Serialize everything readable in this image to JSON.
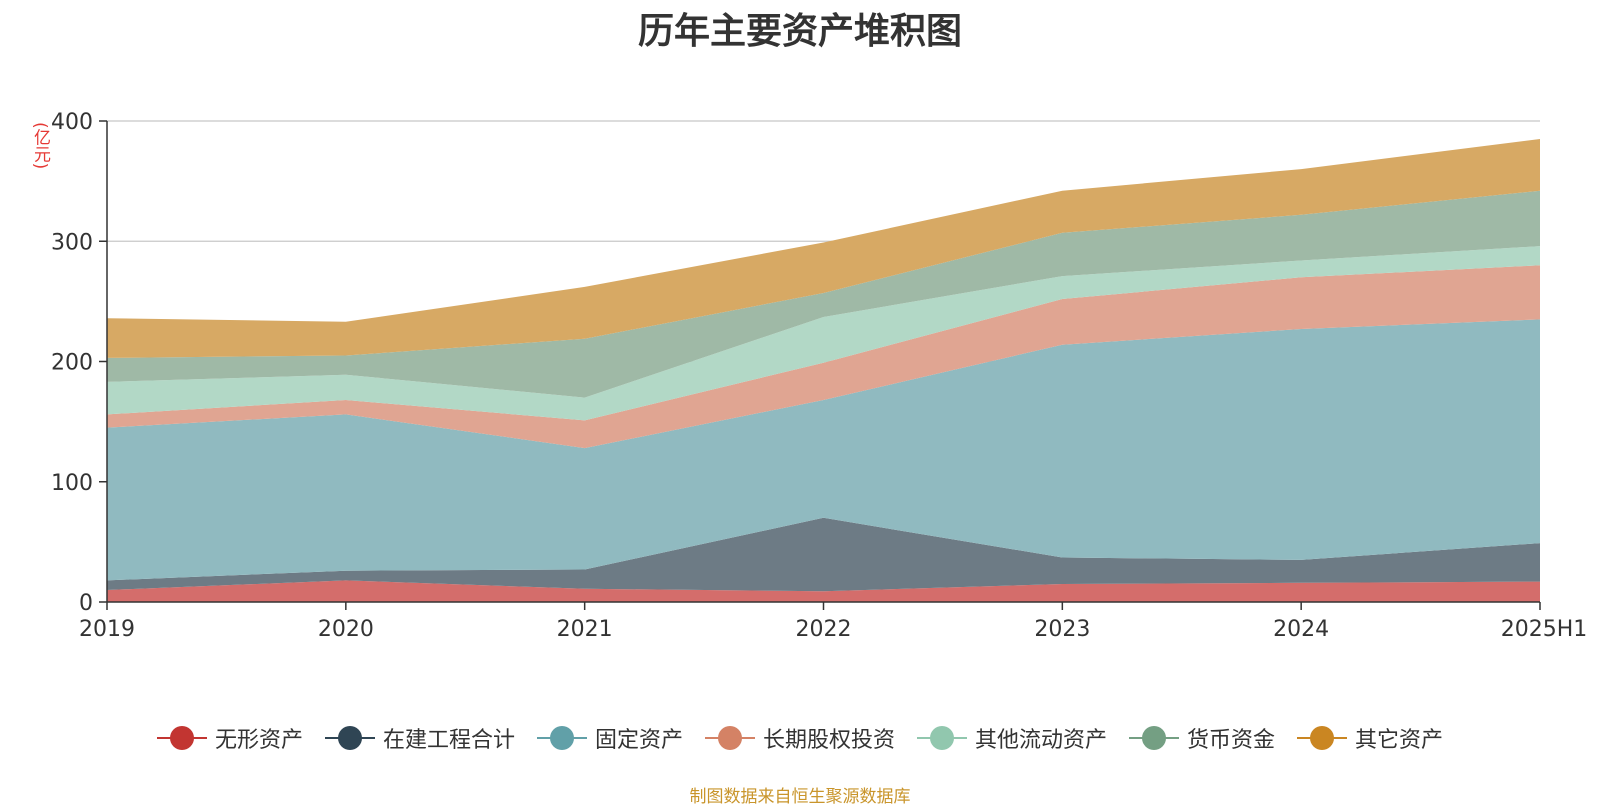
{
  "chart_data": {
    "type": "area",
    "stacked": true,
    "title": "历年主要资产堆积图",
    "unit_label": "(亿元)",
    "source_note": "制图数据来自恒生聚源数据库",
    "categories": [
      "2019",
      "2020",
      "2021",
      "2022",
      "2023",
      "2024",
      "2025H1"
    ],
    "ylim": [
      0,
      400
    ],
    "yticks": [
      0,
      100,
      200,
      300,
      400
    ],
    "grid": true,
    "legend_position": "bottom",
    "series": [
      {
        "name": "无形资产",
        "color": "#c23531",
        "fill": "#d46d6b",
        "values": [
          10,
          18,
          11,
          9,
          15,
          16,
          17
        ]
      },
      {
        "name": "在建工程合计",
        "color": "#2f4554",
        "fill": "#6d7b85",
        "values": [
          8,
          8,
          16,
          61,
          22,
          19,
          32
        ]
      },
      {
        "name": "固定资产",
        "color": "#61a0a8",
        "fill": "#90bac0",
        "values": [
          127,
          130,
          101,
          98,
          177,
          192,
          186
        ]
      },
      {
        "name": "长期股权投资",
        "color": "#d48265",
        "fill": "#e0a592",
        "values": [
          11,
          12,
          23,
          31,
          38,
          43,
          45
        ]
      },
      {
        "name": "其他流动资产",
        "color": "#91c7ae",
        "fill": "#b2d8c6",
        "values": [
          27,
          21,
          19,
          38,
          19,
          14,
          16
        ]
      },
      {
        "name": "货币资金",
        "color": "#749f83",
        "fill": "#9fb9a6",
        "values": [
          20,
          16,
          49,
          20,
          36,
          38,
          46
        ]
      },
      {
        "name": "其它资产",
        "color": "#ca8622",
        "fill": "#d7a964",
        "values": [
          33,
          28,
          43,
          42,
          35,
          38,
          43
        ]
      }
    ]
  }
}
